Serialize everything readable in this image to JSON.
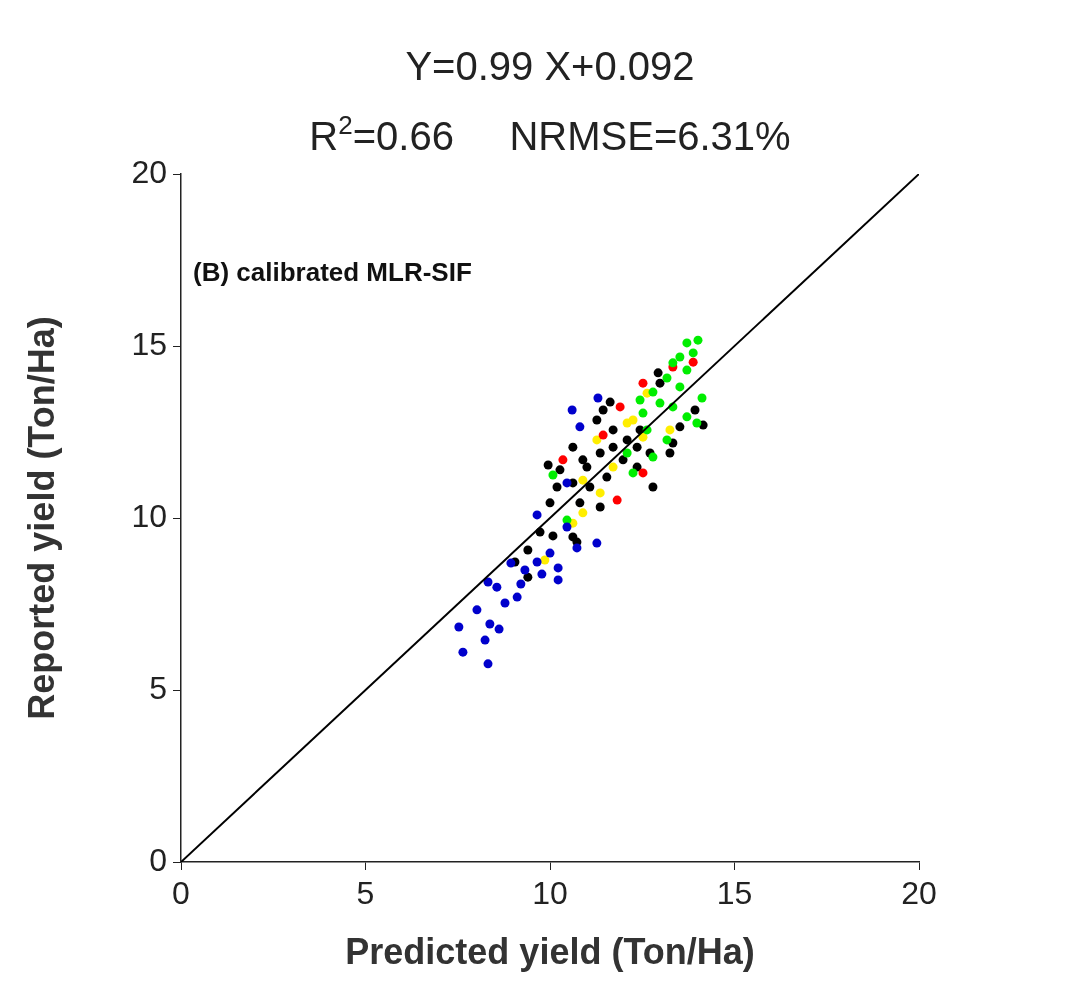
{
  "chart_data": {
    "type": "scatter",
    "title": "Y=0.99 X+0.092",
    "subtitle": "R$^{2}$=0.66     NRMSE=6.31%",
    "xlabel": "Predicted yield (Ton/Ha)",
    "ylabel": "Reported yield (Ton/Ha)",
    "annotations": [
      "(B) calibrated MLR-SIF"
    ],
    "xlim": [
      0,
      20
    ],
    "ylim": [
      0,
      20
    ],
    "xticks": [
      0,
      5,
      10,
      15,
      20
    ],
    "yticks": [
      0,
      5,
      10,
      15,
      20
    ],
    "grid": false,
    "legend": false,
    "marker": "circle",
    "series": [
      {
        "type": "line",
        "color": "#000000",
        "marker": "none",
        "x": [
          0,
          20
        ],
        "values": [
          0,
          20
        ]
      },
      {
        "color": "#0000cc",
        "x": [
          7.53,
          7.64,
          8.32,
          8.24,
          8.37,
          8.62,
          8.02,
          8.78,
          9.11,
          8.56,
          8.32,
          9.21,
          9.32,
          9.78,
          10.22,
          10.22,
          8.94,
          9.65,
          10.0,
          11.27,
          10.73,
          9.65,
          11.3,
          10.6,
          10.81,
          10.46,
          10.46
        ],
        "values": [
          6.83,
          6.1,
          5.76,
          6.45,
          6.92,
          6.77,
          7.33,
          7.53,
          7.7,
          7.99,
          8.14,
          8.08,
          8.49,
          8.37,
          8.2,
          8.55,
          8.69,
          8.72,
          8.98,
          9.27,
          9.13,
          10.09,
          13.49,
          13.14,
          12.65,
          11.02,
          9.74
        ]
      },
      {
        "color": "#00ee00",
        "x": [
          14.01,
          13.71,
          13.88,
          13.52,
          13.33,
          13.71,
          13.17,
          13.52,
          14.12,
          12.79,
          12.44,
          12.98,
          13.33,
          13.71,
          13.98,
          12.63,
          13.17,
          12.79,
          12.25,
          10.08,
          12.09,
          10.46,
          12.52
        ],
        "values": [
          15.17,
          15.09,
          14.8,
          14.68,
          14.51,
          14.3,
          14.07,
          13.81,
          13.49,
          13.66,
          13.43,
          13.34,
          13.23,
          12.94,
          12.76,
          12.56,
          12.27,
          11.77,
          11.31,
          11.25,
          11.89,
          9.94,
          13.05
        ]
      },
      {
        "color": "#ff0000",
        "x": [
          13.33,
          13.88,
          11.9,
          11.44,
          10.35,
          12.52,
          11.82,
          12.52
        ],
        "values": [
          14.39,
          14.53,
          13.23,
          12.41,
          11.69,
          11.31,
          10.52,
          13.92
        ]
      },
      {
        "color": "#ffee00",
        "x": [
          12.63,
          12.09,
          11.27,
          12.52,
          11.71,
          10.89,
          11.36,
          10.89,
          10.62,
          13.25,
          12.25,
          9.86
        ],
        "values": [
          13.63,
          12.76,
          12.27,
          12.35,
          11.48,
          11.1,
          10.73,
          10.15,
          9.85,
          12.56,
          12.85,
          8.78
        ]
      },
      {
        "color": "#000000",
        "x": [
          12.93,
          12.98,
          11.63,
          11.44,
          11.27,
          10.62,
          9.95,
          10.27,
          10.89,
          11.36,
          11.71,
          12.09,
          12.36,
          11.98,
          12.36,
          11.54,
          11.08,
          10.62,
          10.19,
          10.0,
          10.81,
          11.36,
          12.79,
          12.71,
          13.25,
          13.33,
          13.52,
          13.93,
          14.15,
          12.44,
          11.71,
          11.0,
          10.62,
          9.4,
          9.4,
          9.05,
          9.73,
          10.08,
          10.73
        ],
        "values": [
          14.22,
          13.92,
          13.37,
          13.14,
          12.85,
          12.06,
          11.54,
          11.4,
          11.69,
          11.89,
          12.06,
          12.27,
          12.06,
          11.69,
          11.48,
          11.19,
          10.9,
          11.02,
          10.9,
          10.44,
          10.44,
          10.32,
          10.9,
          11.89,
          11.89,
          12.18,
          12.65,
          13.14,
          12.7,
          12.56,
          12.56,
          11.48,
          9.45,
          8.28,
          9.07,
          8.72,
          9.59,
          9.48,
          9.3
        ]
      }
    ]
  }
}
